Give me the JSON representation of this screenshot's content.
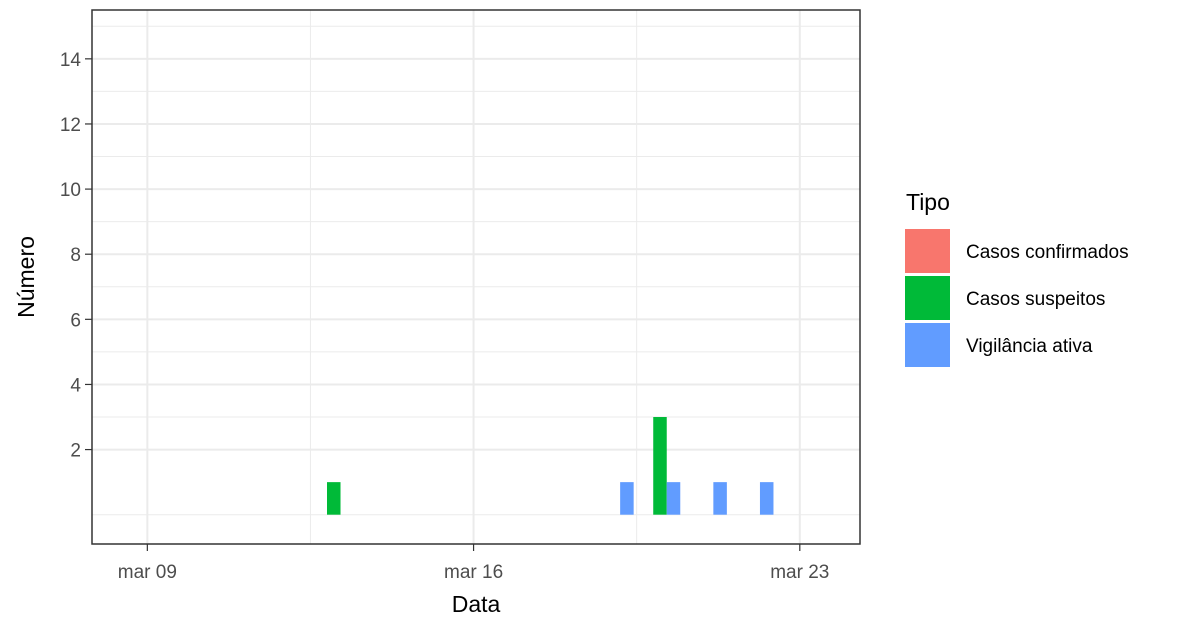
{
  "chart_data": {
    "type": "bar",
    "xlabel": "Data",
    "ylabel": "Número",
    "x_axis": {
      "type": "date",
      "range": [
        "2020-03-07T19:30",
        "2020-03-24T07:00"
      ],
      "ticks": [
        {
          "date": "2020-03-09",
          "label": "mar 09"
        },
        {
          "date": "2020-03-16",
          "label": "mar 16"
        },
        {
          "date": "2020-03-23",
          "label": "mar 23"
        }
      ]
    },
    "y_axis": {
      "range": [
        -0.9,
        15.5
      ],
      "ticks": [
        {
          "value": 2,
          "label": "2"
        },
        {
          "value": 4,
          "label": "4"
        },
        {
          "value": 6,
          "label": "6"
        },
        {
          "value": 8,
          "label": "8"
        },
        {
          "value": 10,
          "label": "10"
        },
        {
          "value": 12,
          "label": "12"
        },
        {
          "value": 14,
          "label": "14"
        }
      ]
    },
    "grid": true,
    "legend": {
      "title": "Tipo",
      "position": "right",
      "entries": [
        {
          "label": "Casos confirmados",
          "color": "#F8766D"
        },
        {
          "label": "Casos suspeitos",
          "color": "#00BA38"
        },
        {
          "label": "Vigilância ativa",
          "color": "#619CFF"
        }
      ]
    },
    "series": [
      {
        "name": "Casos confirmados",
        "color": "#F8766D",
        "points": []
      },
      {
        "name": "Casos suspeitos",
        "color": "#00BA38",
        "points": [
          {
            "date": "2020-03-13",
            "value": 1
          },
          {
            "date": "2020-03-20",
            "value": 3
          }
        ]
      },
      {
        "name": "Vigilância ativa",
        "color": "#619CFF",
        "points": [
          {
            "date": "2020-03-19",
            "value": 1
          },
          {
            "date": "2020-03-20",
            "value": 1
          },
          {
            "date": "2020-03-21",
            "value": 1
          },
          {
            "date": "2020-03-22",
            "value": 1
          }
        ]
      }
    ]
  }
}
